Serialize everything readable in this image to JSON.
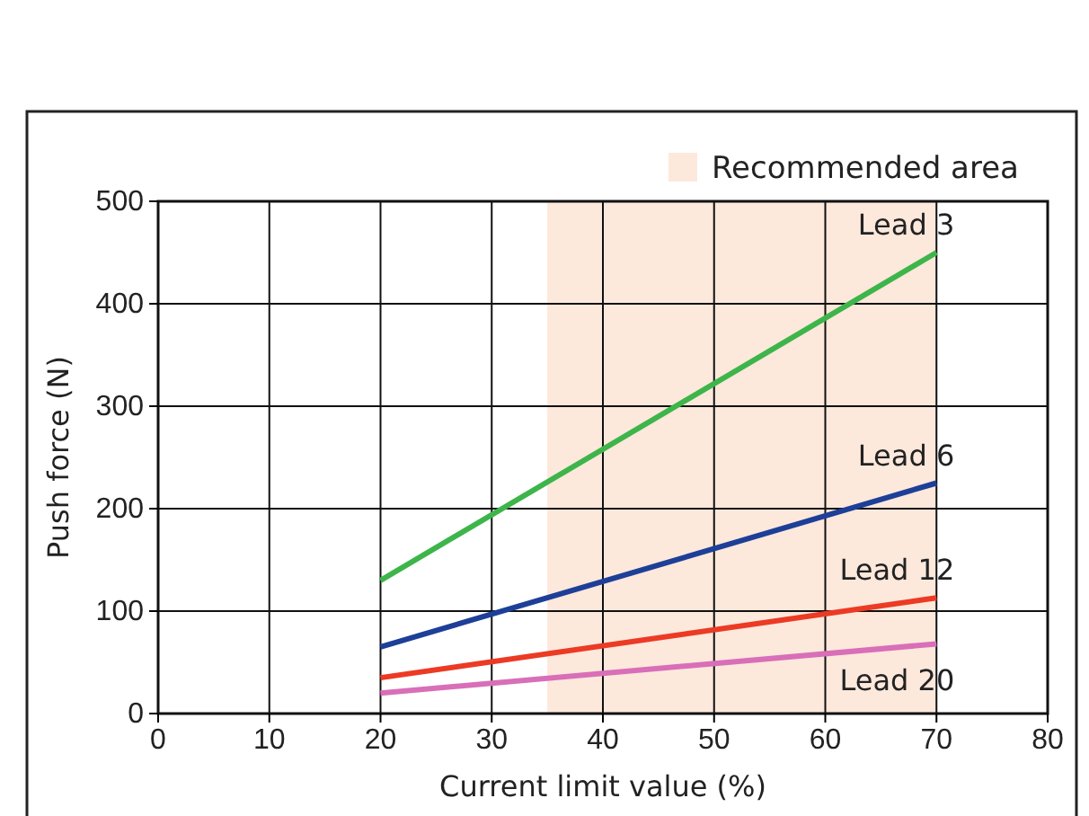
{
  "chart_data": {
    "type": "line",
    "xlabel": "Current limit value (%)",
    "ylabel": "Push force (N)",
    "x": [
      20,
      70
    ],
    "series": [
      {
        "name": "Lead 3",
        "color": "#3db54a",
        "values": [
          130,
          450
        ]
      },
      {
        "name": "Lead 6",
        "color": "#1d3f98",
        "values": [
          65,
          225
        ]
      },
      {
        "name": "Lead 12",
        "color": "#ec3a24",
        "values": [
          35,
          113
        ]
      },
      {
        "name": "Lead 20",
        "color": "#d86fb8",
        "values": [
          20,
          68
        ]
      }
    ],
    "xlim": [
      0,
      80
    ],
    "xticks": [
      0,
      10,
      20,
      30,
      40,
      50,
      60,
      70,
      80
    ],
    "ylim": [
      0,
      500
    ],
    "yticks": [
      0,
      100,
      200,
      300,
      400,
      500
    ],
    "grid": true,
    "marker": "none",
    "line_style": "solid",
    "bands": [
      {
        "axis": "x",
        "from": 35,
        "to": 70,
        "label": "Recommended area",
        "color": "#fde8dc"
      }
    ]
  }
}
